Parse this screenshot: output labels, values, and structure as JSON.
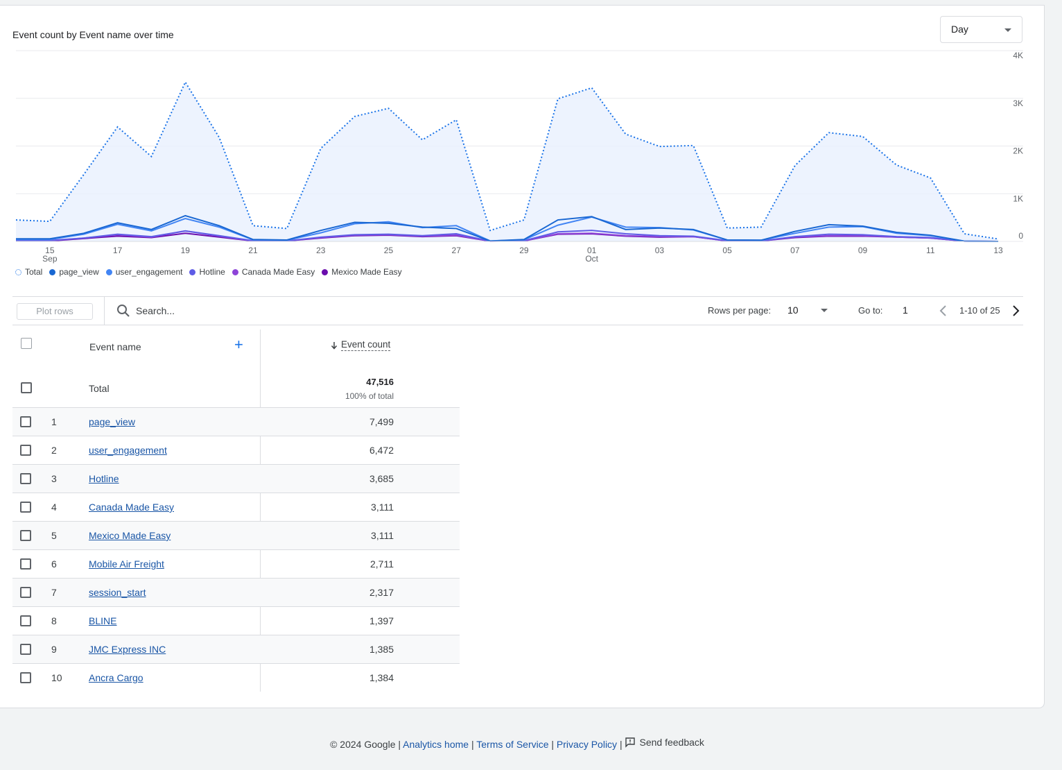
{
  "card": {
    "title": "Event count by Event name over time",
    "period_select": "Day"
  },
  "chart_data": {
    "type": "line",
    "x_tick_labels": [
      {
        "day": "15",
        "month": "Sep"
      },
      {
        "day": "17",
        "month": ""
      },
      {
        "day": "19",
        "month": ""
      },
      {
        "day": "21",
        "month": ""
      },
      {
        "day": "23",
        "month": ""
      },
      {
        "day": "25",
        "month": ""
      },
      {
        "day": "27",
        "month": ""
      },
      {
        "day": "29",
        "month": ""
      },
      {
        "day": "01",
        "month": "Oct"
      },
      {
        "day": "03",
        "month": ""
      },
      {
        "day": "05",
        "month": ""
      },
      {
        "day": "07",
        "month": ""
      },
      {
        "day": "09",
        "month": ""
      },
      {
        "day": "11",
        "month": ""
      },
      {
        "day": "13",
        "month": ""
      }
    ],
    "x_dates": [
      "Sep 14",
      "Sep 15",
      "Sep 16",
      "Sep 17",
      "Sep 18",
      "Sep 19",
      "Sep 20",
      "Sep 21",
      "Sep 22",
      "Sep 23",
      "Sep 24",
      "Sep 25",
      "Sep 26",
      "Sep 27",
      "Sep 28",
      "Sep 29",
      "Sep 30",
      "Oct 01",
      "Oct 02",
      "Oct 03",
      "Oct 04",
      "Oct 05",
      "Oct 06",
      "Oct 07",
      "Oct 08",
      "Oct 09",
      "Oct 10",
      "Oct 11",
      "Oct 12",
      "Oct 13"
    ],
    "y_tick_labels": [
      "4K",
      "3K",
      "2K",
      "1K",
      "0"
    ],
    "y_ticks": [
      4000,
      3000,
      2000,
      1000,
      0
    ],
    "ylim": [
      0,
      4000
    ],
    "grid": true,
    "legend_position": "bottom-left",
    "series": [
      {
        "name": "Total",
        "color": "#1a73e8",
        "style": "dotted",
        "values": [
          450,
          420,
          1400,
          2400,
          1780,
          3340,
          2180,
          330,
          270,
          1950,
          2620,
          2790,
          2130,
          2550,
          230,
          450,
          2990,
          3220,
          2250,
          1990,
          2010,
          280,
          300,
          1590,
          2280,
          2200,
          1600,
          1330,
          160,
          50
        ]
      },
      {
        "name": "page_view",
        "color": "#1967d2",
        "values": [
          55,
          55,
          170,
          390,
          250,
          540,
          330,
          40,
          30,
          230,
          400,
          380,
          300,
          270,
          10,
          40,
          450,
          520,
          250,
          280,
          250,
          30,
          25,
          210,
          350,
          320,
          190,
          130,
          5,
          0
        ]
      },
      {
        "name": "user_engagement",
        "color": "#4285f4",
        "values": [
          40,
          40,
          150,
          360,
          220,
          480,
          300,
          35,
          25,
          180,
          370,
          410,
          290,
          330,
          10,
          35,
          340,
          510,
          300,
          290,
          240,
          30,
          25,
          170,
          300,
          310,
          170,
          120,
          5,
          0
        ]
      },
      {
        "name": "Hotline",
        "color": "#5e5ce6",
        "values": [
          20,
          20,
          70,
          150,
          100,
          220,
          120,
          15,
          10,
          90,
          140,
          150,
          120,
          160,
          5,
          15,
          200,
          230,
          160,
          120,
          110,
          15,
          10,
          100,
          150,
          140,
          100,
          80,
          5,
          0
        ]
      },
      {
        "name": "Canada Made Easy",
        "color": "#8e44d8",
        "values": [
          15,
          15,
          70,
          140,
          90,
          220,
          110,
          10,
          10,
          80,
          130,
          140,
          110,
          130,
          5,
          10,
          160,
          170,
          120,
          100,
          100,
          10,
          10,
          90,
          120,
          120,
          90,
          70,
          5,
          0
        ]
      },
      {
        "name": "Mexico Made Easy",
        "color": "#6a0dad",
        "values": [
          10,
          10,
          60,
          110,
          80,
          170,
          90,
          10,
          10,
          70,
          120,
          130,
          100,
          120,
          5,
          10,
          150,
          160,
          110,
          90,
          100,
          10,
          10,
          80,
          110,
          110,
          90,
          70,
          5,
          0
        ]
      }
    ]
  },
  "toolbar": {
    "plot_rows_label": "Plot rows",
    "search_placeholder": "Search...",
    "rows_per_page_label": "Rows per page:",
    "rows_per_page_value": "10",
    "goto_label": "Go to:",
    "goto_value": "1",
    "page_range": "1-10 of 25"
  },
  "table": {
    "col_event_name": "Event name",
    "col_event_count": "Event count",
    "total_label": "Total",
    "total_value": "47,516",
    "total_pct": "100% of total",
    "rows": [
      {
        "num": "1",
        "name": "page_view",
        "count": "7,499"
      },
      {
        "num": "2",
        "name": "user_engagement",
        "count": "6,472"
      },
      {
        "num": "3",
        "name": "Hotline",
        "count": "3,685"
      },
      {
        "num": "4",
        "name": "Canada Made Easy",
        "count": "3,111"
      },
      {
        "num": "5",
        "name": "Mexico Made Easy",
        "count": "3,111"
      },
      {
        "num": "6",
        "name": "Mobile Air Freight",
        "count": "2,711"
      },
      {
        "num": "7",
        "name": "session_start",
        "count": "2,317"
      },
      {
        "num": "8",
        "name": "BLINE",
        "count": "1,397"
      },
      {
        "num": "9",
        "name": "JMC Express INC",
        "count": "1,385"
      },
      {
        "num": "10",
        "name": "Ancra Cargo",
        "count": "1,384"
      }
    ]
  },
  "footer": {
    "copyright": "© 2024 Google |",
    "analytics_home": "Analytics home",
    "terms": "Terms of Service",
    "privacy": "Privacy Policy",
    "send_feedback": "Send feedback"
  }
}
